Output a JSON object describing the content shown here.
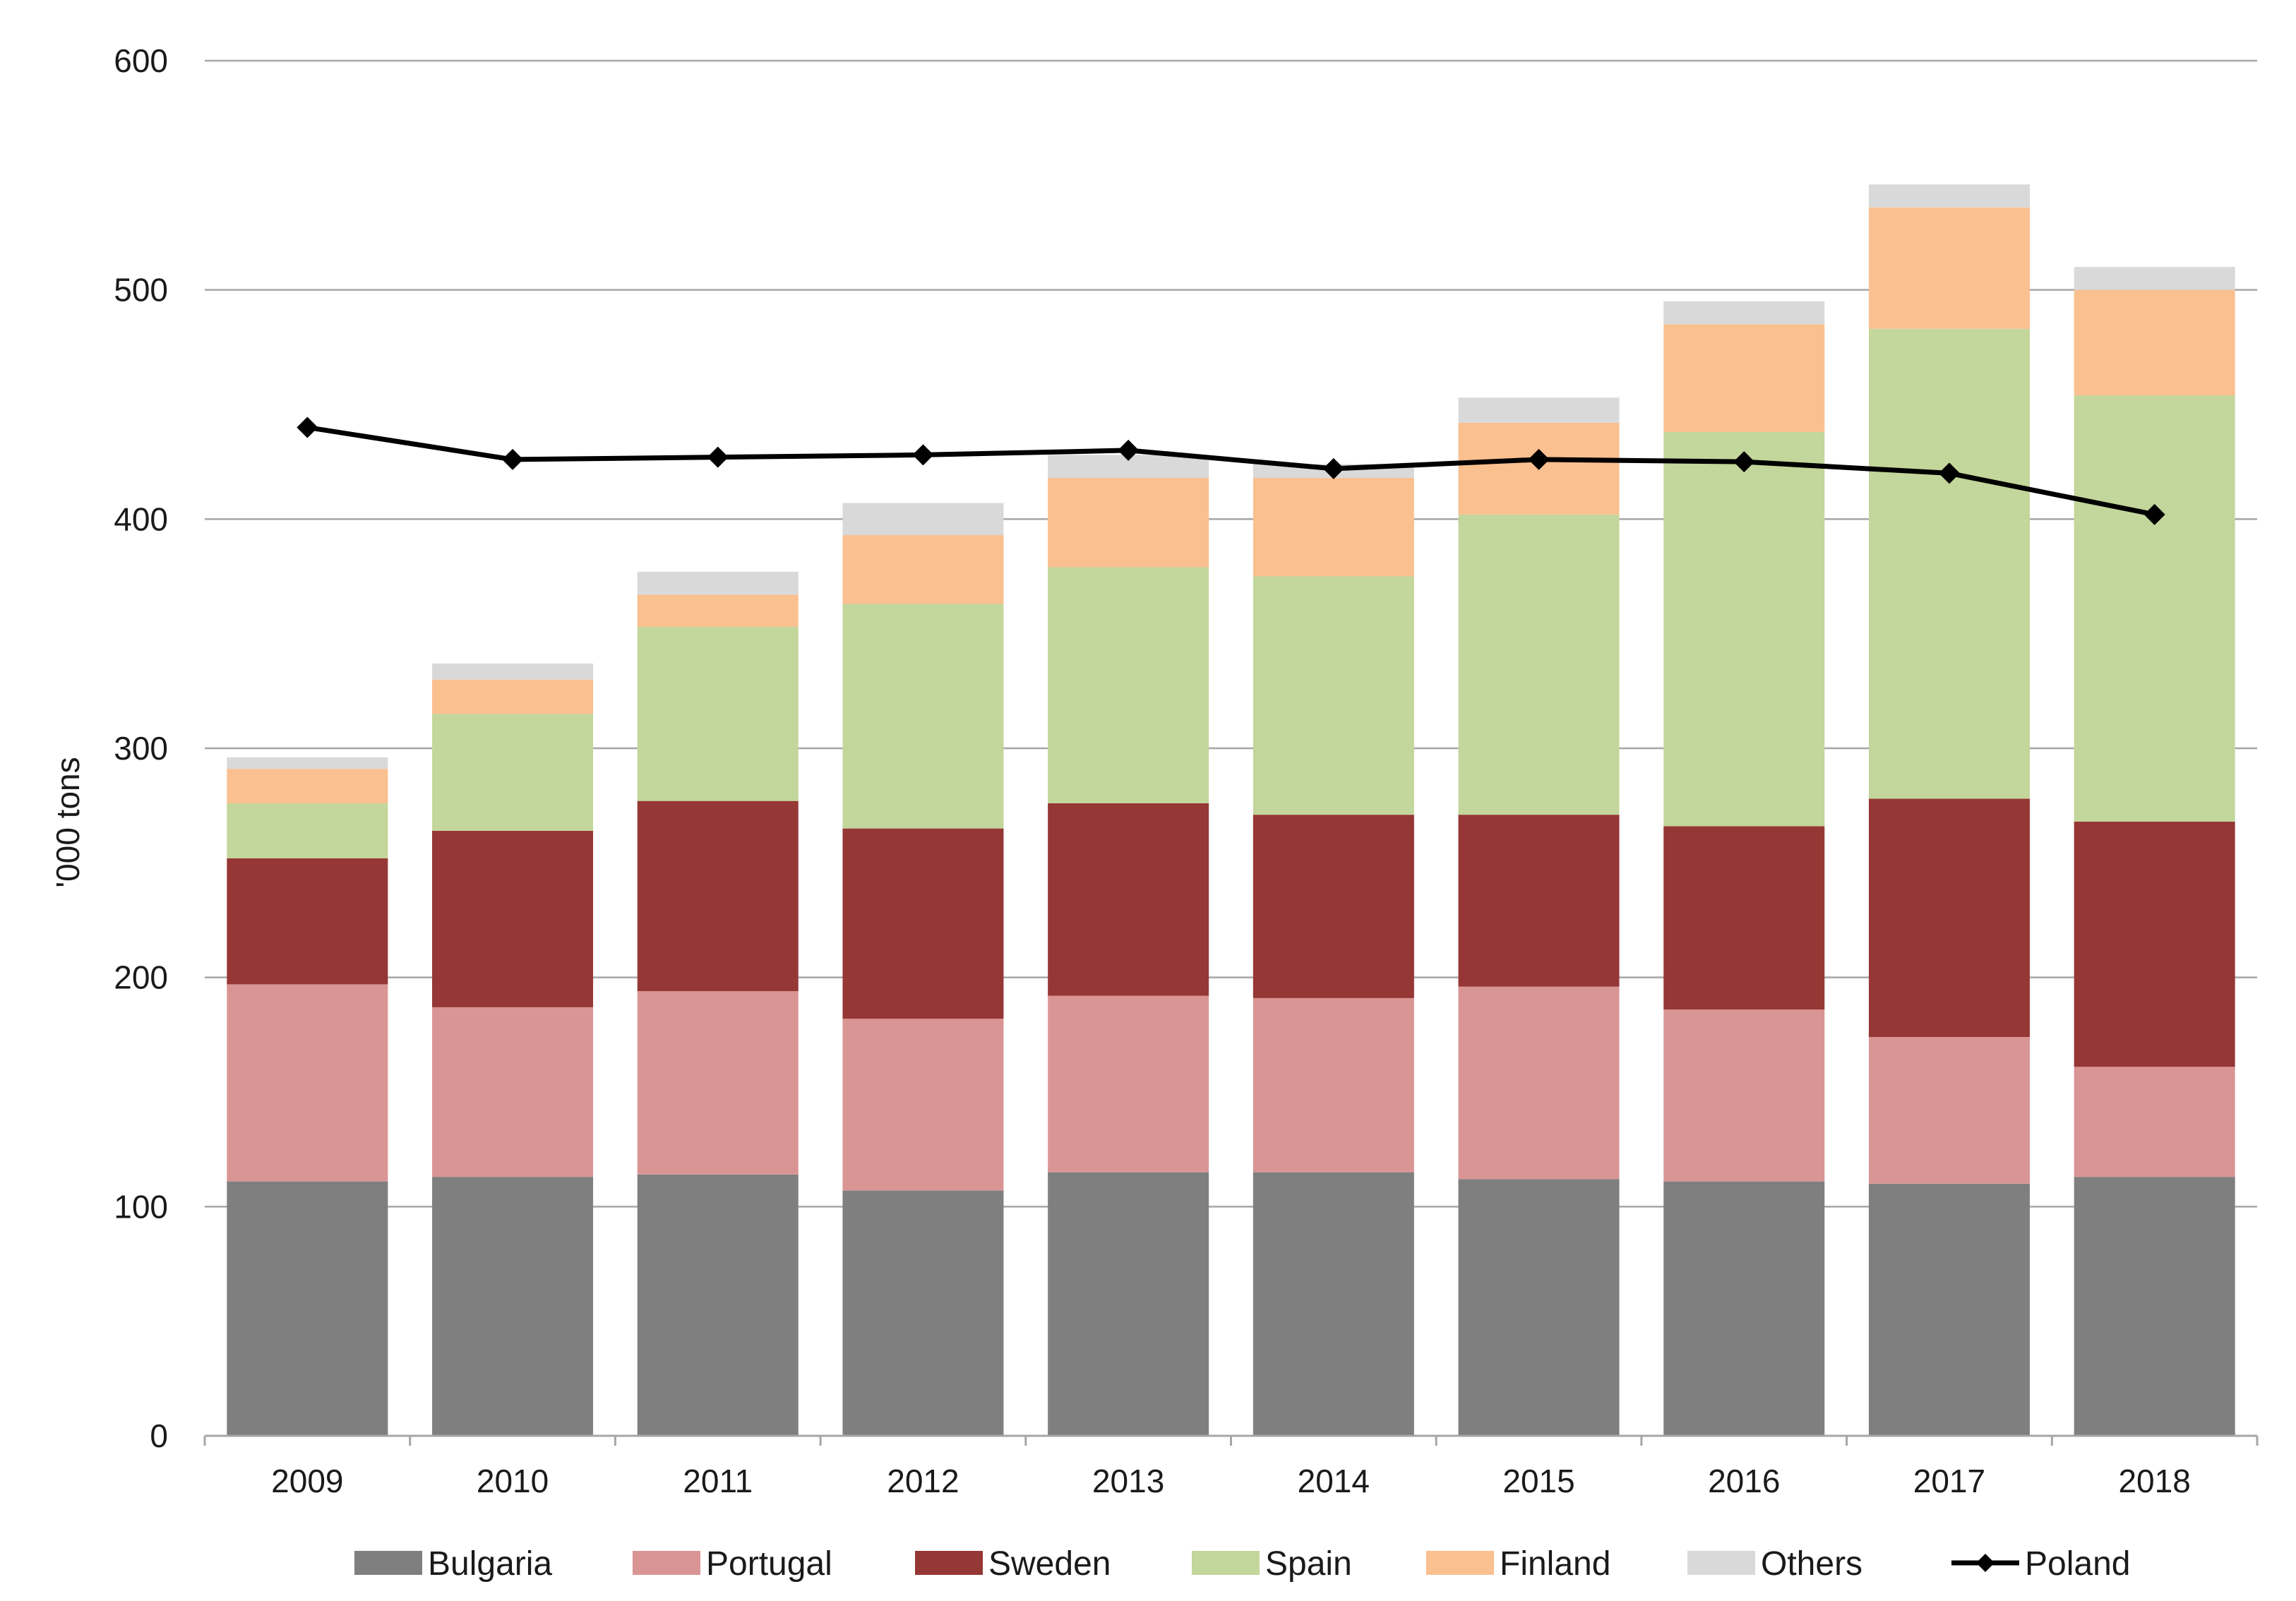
{
  "chart_data": {
    "type": "bar",
    "stacked": true,
    "title": "",
    "xlabel": "",
    "ylabel": "'000 tons",
    "ylim": [
      0,
      600
    ],
    "yticks": [
      0,
      100,
      200,
      300,
      400,
      500,
      600
    ],
    "grid": "horizontal",
    "legend_position": "bottom",
    "categories": [
      "2009",
      "2010",
      "2011",
      "2012",
      "2013",
      "2014",
      "2015",
      "2016",
      "2017",
      "2018"
    ],
    "series": [
      {
        "name": "Bulgaria",
        "color": "#7f7f7f",
        "values": [
          111,
          113,
          114,
          107,
          115,
          115,
          112,
          111,
          110,
          113
        ]
      },
      {
        "name": "Portugal",
        "color": "#d99594",
        "values": [
          86,
          74,
          80,
          75,
          77,
          76,
          84,
          75,
          64,
          48
        ]
      },
      {
        "name": "Sweden",
        "color": "#953735",
        "values": [
          55,
          77,
          83,
          83,
          84,
          80,
          75,
          80,
          104,
          107
        ]
      },
      {
        "name": "Spain",
        "color": "#c3d69b",
        "values": [
          24,
          51,
          76,
          98,
          103,
          104,
          131,
          172,
          205,
          186
        ]
      },
      {
        "name": "Finland",
        "color": "#fac090",
        "values": [
          15,
          15,
          14,
          30,
          39,
          43,
          40,
          47,
          53,
          46
        ]
      },
      {
        "name": "Others",
        "color": "#d9d9d9",
        "values": [
          5,
          7,
          10,
          14,
          10,
          6,
          11,
          10,
          10,
          10
        ]
      }
    ],
    "line_series": [
      {
        "name": "Poland",
        "color": "#000000",
        "marker": "diamond",
        "values": [
          440,
          426,
          427,
          428,
          430,
          422,
          426,
          425,
          420,
          402
        ]
      }
    ]
  }
}
